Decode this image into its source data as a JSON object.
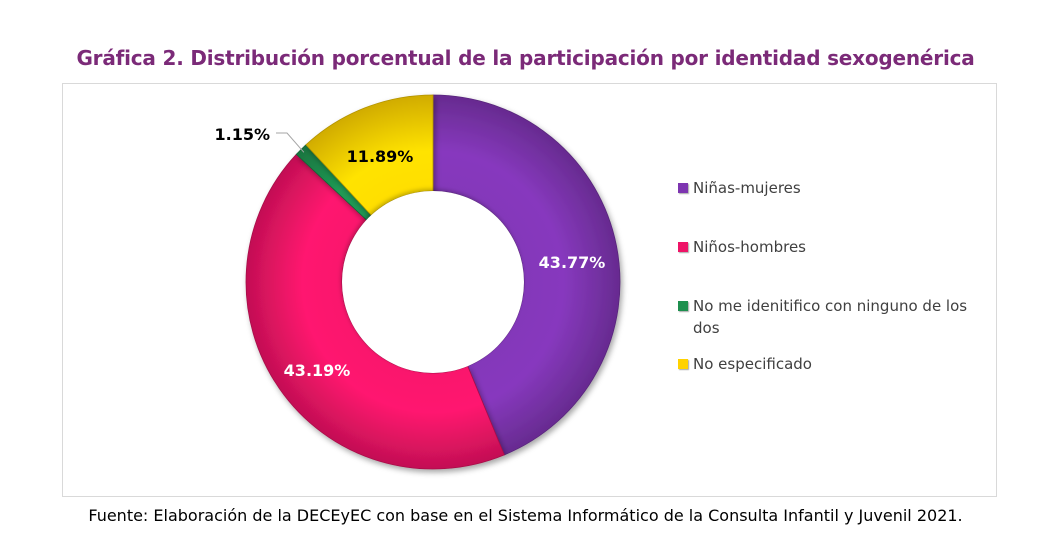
{
  "chart_data": {
    "type": "pie",
    "title": "Gráfica 2. Distribución porcentual de la participación por identidad sexogenérica",
    "categories": [
      "Niñas-mujeres",
      "Niños-hombres",
      "No me idenitifico con ninguno de los dos",
      "No especificado"
    ],
    "values": [
      43.77,
      43.19,
      1.15,
      11.89
    ],
    "value_labels": [
      "43.77%",
      "43.19%",
      "1.15%",
      "11.89%"
    ],
    "colors": [
      "#7d35b0",
      "#ee1467",
      "#1e8f4e",
      "#ffd200"
    ],
    "donut": true,
    "legend_position": "right"
  },
  "source": "Fuente: Elaboración de la DECEyEC con base en el Sistema Informático de la Consulta Infantil y Juvenil 2021."
}
